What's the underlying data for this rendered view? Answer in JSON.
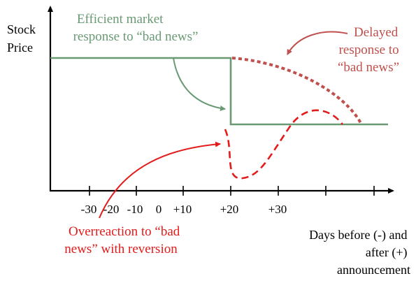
{
  "y_axis_label": [
    "Stock",
    "Price"
  ],
  "x_axis_label": [
    "Days before (-) and",
    "after (+)",
    "announcement"
  ],
  "tick_labels": [
    "-30",
    "-20",
    "-10",
    "0",
    "+10",
    "+20",
    "+30"
  ],
  "annotations": {
    "efficient": {
      "lines": [
        "Efficient market",
        "response to “bad news”"
      ],
      "color": "#6a9a74"
    },
    "delayed": {
      "lines": [
        "Delayed",
        "response to",
        "“bad news”"
      ],
      "color": "#c0504d"
    },
    "overreaction": {
      "lines": [
        "Overreaction to “bad",
        "news” with reversion"
      ],
      "color": "#e31b1b"
    }
  },
  "colors": {
    "axis": "#000000",
    "efficient": "#6a9a74",
    "delayed": "#c0504d",
    "overreaction": "#e31b1b"
  }
}
